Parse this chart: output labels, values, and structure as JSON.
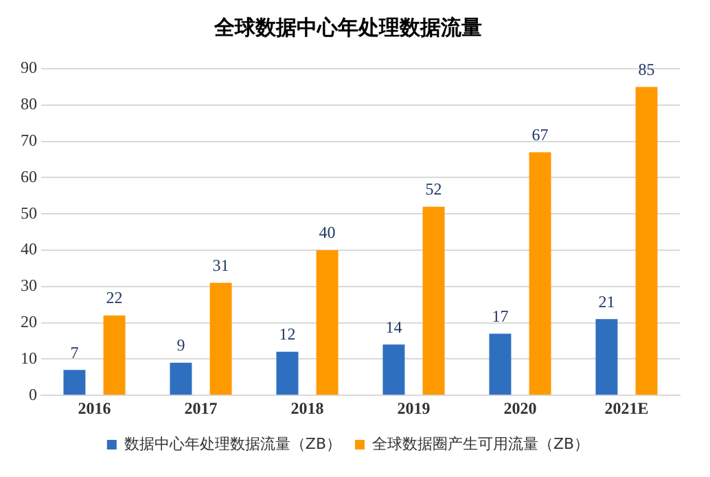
{
  "chart_data": {
    "type": "bar",
    "title": "全球数据中心年处理数据流量",
    "categories": [
      "2016",
      "2017",
      "2018",
      "2019",
      "2020",
      "2021E"
    ],
    "series": [
      {
        "name": "数据中心年处理数据流量（ZB）",
        "color": "#2f6fc0",
        "values": [
          7,
          9,
          12,
          14,
          17,
          21
        ]
      },
      {
        "name": "全球数据圈产生可用流量（ZB）",
        "color": "#ff9900",
        "values": [
          22,
          31,
          40,
          52,
          67,
          85
        ]
      }
    ],
    "ylim": [
      0,
      90
    ],
    "yticks": [
      0,
      10,
      20,
      30,
      40,
      50,
      60,
      70,
      80,
      90
    ],
    "grid": "y",
    "legend": "bottom",
    "data_labels": true
  }
}
